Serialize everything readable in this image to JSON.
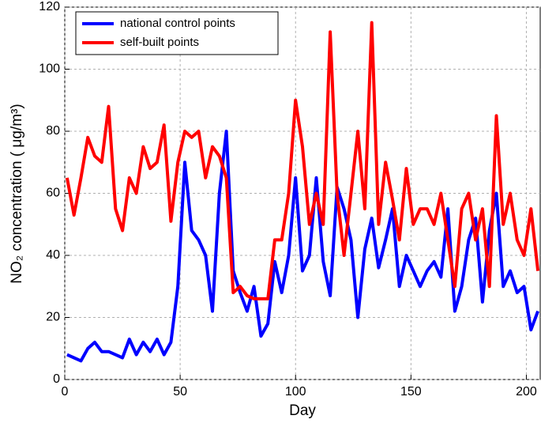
{
  "chart_data": {
    "type": "line",
    "xlabel": "Day",
    "ylabel": "NO₂ concentration ( μg/m³)",
    "x": [
      1,
      4,
      7,
      10,
      13,
      16,
      19,
      22,
      25,
      28,
      31,
      34,
      37,
      40,
      43,
      46,
      49,
      52,
      55,
      58,
      61,
      64,
      67,
      70,
      73,
      76,
      79,
      82,
      85,
      88,
      91,
      94,
      97,
      100,
      103,
      106,
      109,
      112,
      115,
      118,
      121,
      124,
      127,
      130,
      133,
      136,
      139,
      142,
      145,
      148,
      151,
      154,
      157,
      160,
      163,
      166,
      169,
      172,
      175,
      178,
      181,
      184,
      187,
      190,
      193,
      196,
      199,
      202,
      205
    ],
    "series": [
      {
        "name": "national control points",
        "color": "#0000ff",
        "values": [
          8,
          7,
          6,
          10,
          12,
          9,
          9,
          8,
          7,
          13,
          8,
          12,
          9,
          13,
          8,
          12,
          30,
          70,
          48,
          45,
          40,
          22,
          60,
          80,
          35,
          28,
          22,
          30,
          14,
          18,
          38,
          28,
          40,
          65,
          35,
          40,
          65,
          38,
          27,
          62,
          55,
          45,
          20,
          42,
          52,
          36,
          45,
          55,
          30,
          40,
          35,
          30,
          35,
          38,
          33,
          55,
          22,
          30,
          45,
          52,
          25,
          48,
          60,
          30,
          35,
          28,
          30,
          16,
          22
        ]
      },
      {
        "name": "self-built points",
        "color": "#ff0000",
        "values": [
          65,
          53,
          65,
          78,
          72,
          70,
          88,
          55,
          48,
          65,
          60,
          75,
          68,
          70,
          82,
          51,
          70,
          80,
          78,
          80,
          65,
          75,
          72,
          65,
          28,
          30,
          27,
          26,
          26,
          26,
          45,
          45,
          60,
          90,
          75,
          50,
          60,
          50,
          112,
          60,
          40,
          60,
          80,
          55,
          115,
          50,
          70,
          58,
          45,
          68,
          50,
          55,
          55,
          50,
          60,
          45,
          30,
          55,
          60,
          45,
          55,
          30,
          85,
          50,
          60,
          45,
          40,
          55,
          35
        ]
      }
    ],
    "xlim": [
      0,
      206
    ],
    "ylim": [
      0,
      120
    ],
    "xticks": [
      0,
      50,
      100,
      150,
      200
    ],
    "yticks": [
      0,
      20,
      40,
      60,
      80,
      100,
      120
    ],
    "grid": true,
    "legend": "upper left"
  }
}
